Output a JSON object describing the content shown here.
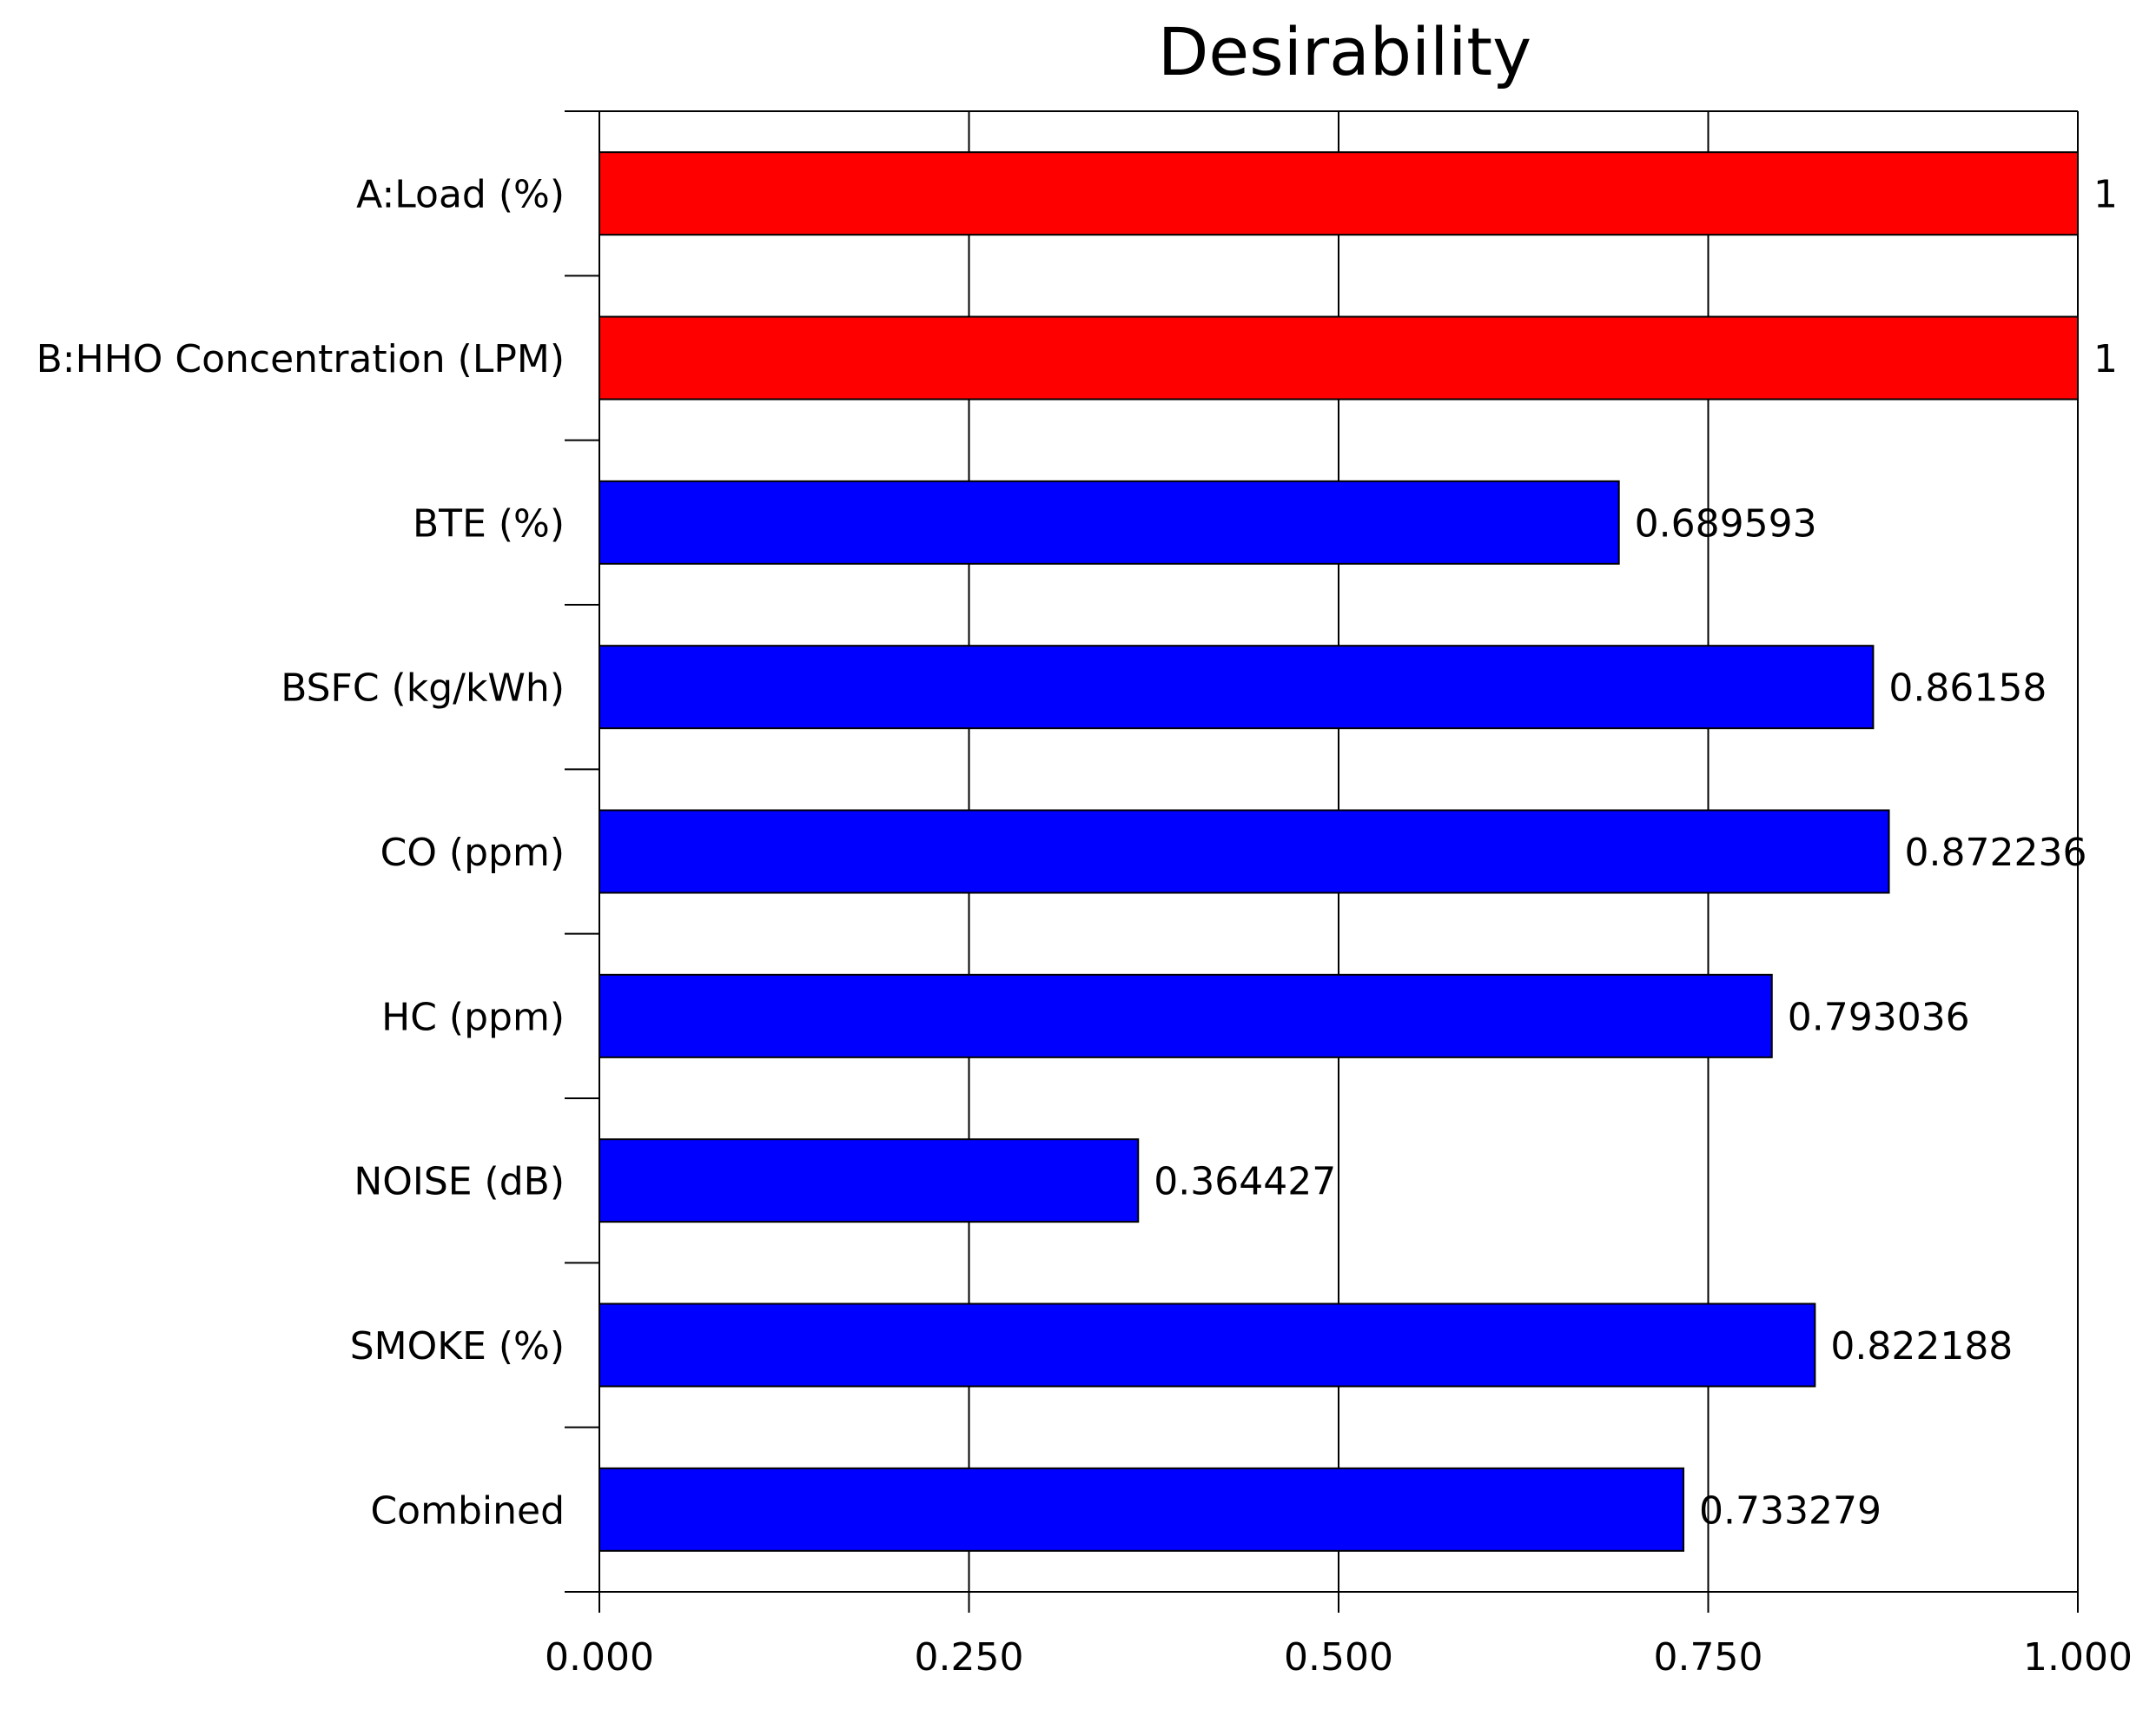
{
  "chart_data": {
    "type": "bar",
    "orientation": "horizontal",
    "title": "Desirability",
    "xlabel": "",
    "ylabel": "",
    "xlim": [
      0,
      1
    ],
    "grid": true,
    "ticks": [
      0,
      0.25,
      0.5,
      0.75,
      1
    ],
    "tick_labels": [
      "0.000",
      "0.250",
      "0.500",
      "0.750",
      "1.000"
    ],
    "categories": [
      "A:Load (%)",
      "B:HHO Concentration (LPM)",
      "BTE (%)",
      "BSFC (kg/kWh)",
      "CO (ppm)",
      "HC (ppm)",
      "NOISE (dB)",
      "SMOKE (%)",
      "Combined"
    ],
    "values": [
      1,
      1,
      0.689593,
      0.86158,
      0.872236,
      0.793036,
      0.364427,
      0.822188,
      0.733279
    ],
    "value_labels": [
      "1",
      "1",
      "0.689593",
      "0.86158",
      "0.872236",
      "0.793036",
      "0.364427",
      "0.822188",
      "0.733279"
    ],
    "bar_colors": [
      "#ff0000",
      "#ff0000",
      "#0000ff",
      "#0000ff",
      "#0000ff",
      "#0000ff",
      "#0000ff",
      "#0000ff",
      "#0000ff"
    ]
  }
}
